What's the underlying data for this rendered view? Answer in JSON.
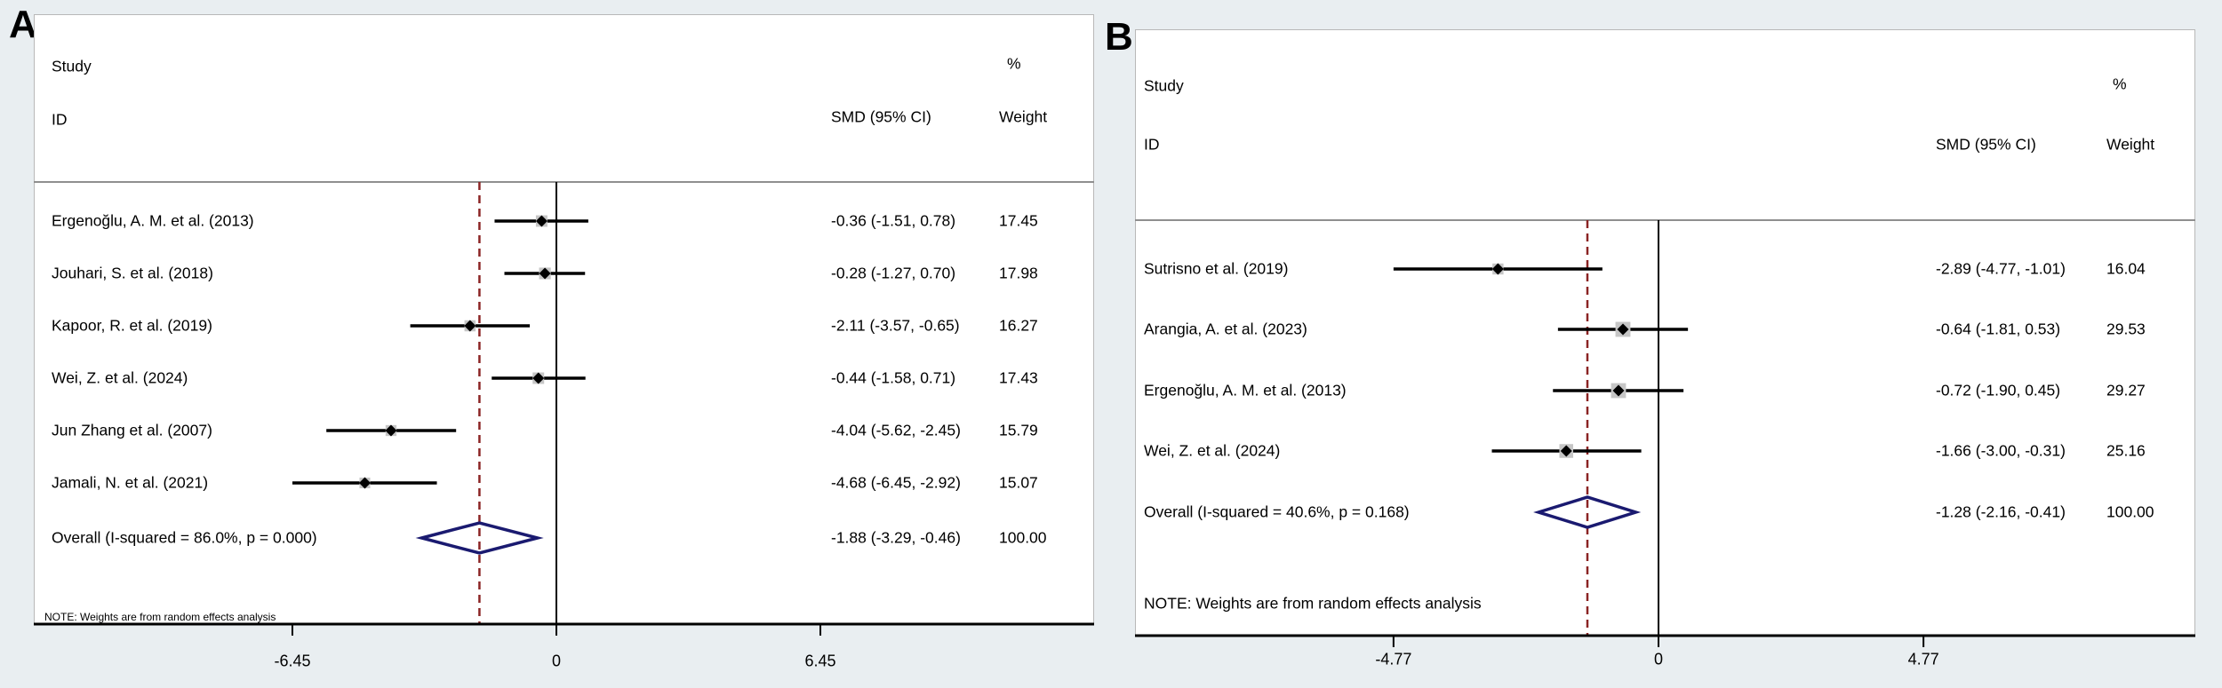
{
  "figure": {
    "colors": {
      "background": "#e9eef1",
      "panel_fill": "#ffffff",
      "ci_line": "#000000",
      "marker": "#000000",
      "weight_box": "#c6c6c6",
      "overall_diamond": "#1a1a70",
      "overall_dashed_line": "#8b2424",
      "zero_line": "#000000",
      "separator": "#8f8f8f",
      "axis_line": "#000000"
    }
  },
  "chart_data": [
    {
      "type": "scatter",
      "subtype": "forest-plot-meta-analysis",
      "panel_label": "A",
      "columns": {
        "study": "Study",
        "id": "ID",
        "smd": "SMD (95% CI)",
        "pct": "%",
        "weight": "Weight"
      },
      "note": "NOTE: Weights are from random effects analysis",
      "x_axis": {
        "tick_values": [
          -6.45,
          0,
          6.45
        ],
        "tick_labels": [
          "-6.45",
          "0",
          "6.45"
        ],
        "null_line_at": 0,
        "grid": false
      },
      "legend": "none",
      "studies": [
        {
          "id": "Ergenoğlu, A. M. et al. (2013)",
          "smd_text": "-0.36 (-1.51, 0.78)",
          "est": -0.36,
          "ci_low": -1.51,
          "ci_high": 0.78,
          "weight": 17.45,
          "weight_text": "17.45"
        },
        {
          "id": "Jouhari, S. et al. (2018)",
          "smd_text": "-0.28 (-1.27, 0.70)",
          "est": -0.28,
          "ci_low": -1.27,
          "ci_high": 0.7,
          "weight": 17.98,
          "weight_text": "17.98"
        },
        {
          "id": "Kapoor, R. et al. (2019)",
          "smd_text": "-2.11 (-3.57, -0.65)",
          "est": -2.11,
          "ci_low": -3.57,
          "ci_high": -0.65,
          "weight": 16.27,
          "weight_text": "16.27"
        },
        {
          "id": "Wei, Z. et al. (2024)",
          "smd_text": "-0.44 (-1.58, 0.71)",
          "est": -0.44,
          "ci_low": -1.58,
          "ci_high": 0.71,
          "weight": 17.43,
          "weight_text": "17.43"
        },
        {
          "id": "Jun Zhang et al. (2007)",
          "smd_text": "-4.04 (-5.62, -2.45)",
          "est": -4.04,
          "ci_low": -5.62,
          "ci_high": -2.45,
          "weight": 15.79,
          "weight_text": "15.79"
        },
        {
          "id": "Jamali, N. et al. (2021)",
          "smd_text": "-4.68 (-6.45, -2.92)",
          "est": -4.68,
          "ci_low": -6.45,
          "ci_high": -2.92,
          "weight": 15.07,
          "weight_text": "15.07"
        }
      ],
      "overall": {
        "label": "Overall  (I-squared = 86.0%, p = 0.000)",
        "smd_text": "-1.88 (-3.29, -0.46)",
        "est": -1.88,
        "ci_low": -3.29,
        "ci_high": -0.46,
        "weight_text": "100.00"
      }
    },
    {
      "type": "scatter",
      "subtype": "forest-plot-meta-analysis",
      "panel_label": "B",
      "columns": {
        "study": "Study",
        "id": "ID",
        "smd": "SMD (95% CI)",
        "pct": "%",
        "weight": "Weight"
      },
      "note": "NOTE: Weights are from random effects analysis",
      "x_axis": {
        "tick_values": [
          -4.77,
          0,
          4.77
        ],
        "tick_labels": [
          "-4.77",
          "0",
          "4.77"
        ],
        "null_line_at": 0,
        "grid": false
      },
      "legend": "none",
      "studies": [
        {
          "id": "Sutrisno et al. (2019)",
          "smd_text": "-2.89 (-4.77, -1.01)",
          "est": -2.89,
          "ci_low": -4.77,
          "ci_high": -1.01,
          "weight": 16.04,
          "weight_text": "16.04"
        },
        {
          "id": "Arangia, A. et al. (2023)",
          "smd_text": "-0.64 (-1.81, 0.53)",
          "est": -0.64,
          "ci_low": -1.81,
          "ci_high": 0.53,
          "weight": 29.53,
          "weight_text": "29.53"
        },
        {
          "id": "Ergenoğlu, A. M. et al. (2013)",
          "smd_text": "-0.72 (-1.90, 0.45)",
          "est": -0.72,
          "ci_low": -1.9,
          "ci_high": 0.45,
          "weight": 29.27,
          "weight_text": "29.27"
        },
        {
          "id": "Wei, Z. et al. (2024)",
          "smd_text": "-1.66 (-3.00, -0.31)",
          "est": -1.66,
          "ci_low": -3.0,
          "ci_high": -0.31,
          "weight": 25.16,
          "weight_text": "25.16"
        }
      ],
      "overall": {
        "label": "Overall  (I-squared = 40.6%, p = 0.168)",
        "smd_text": "-1.28 (-2.16, -0.41)",
        "est": -1.28,
        "ci_low": -2.16,
        "ci_high": -0.41,
        "weight_text": "100.00"
      }
    }
  ]
}
